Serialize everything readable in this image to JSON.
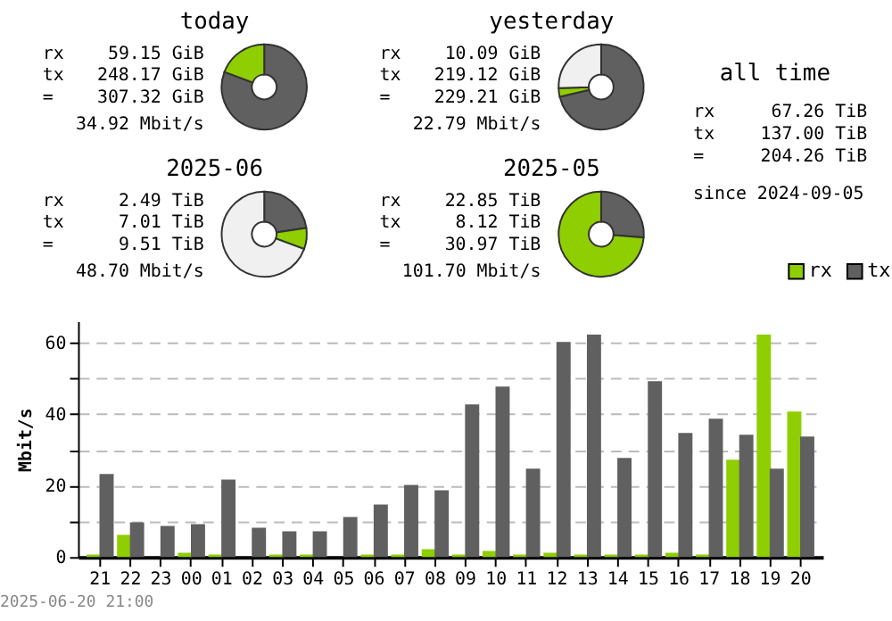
{
  "chart_data": [
    {
      "type": "donut",
      "title": "today",
      "categories": [
        null,
        null
      ],
      "values": [
        80.75,
        19.25
      ],
      "colors": [
        "#606060",
        "#8fce00"
      ],
      "annotations": [
        "rx 59.15 GiB",
        "tx 248.17 GiB",
        "= 307.32 GiB",
        "34.92 Mbit/s"
      ]
    },
    {
      "type": "donut",
      "title": "yesterday",
      "categories": [
        null,
        null,
        null
      ],
      "values": [
        71.3,
        3.28,
        25.42
      ],
      "colors": [
        "#606060",
        "#8fce00",
        "#f0f0f0"
      ],
      "annotations": [
        "rx 10.09 GiB",
        "tx 219.12 GiB",
        "= 229.21 GiB",
        "22.79 Mbit/s"
      ]
    },
    {
      "type": "other",
      "title": "all time",
      "annotations": [
        "rx 67.26 TiB",
        "tx 137.00 TiB",
        "= 204.26 TiB",
        "since 2024-09-05"
      ]
    },
    {
      "type": "donut",
      "title": "2025-06",
      "categories": [
        null,
        null,
        null
      ],
      "values": [
        22.63,
        8.04,
        69.33
      ],
      "colors": [
        "#606060",
        "#8fce00",
        "#f0f0f0"
      ],
      "annotations": [
        "rx 2.49 TiB",
        "tx 7.01 TiB",
        "= 9.51 TiB",
        "48.70 Mbit/s"
      ]
    },
    {
      "type": "donut",
      "title": "2025-05",
      "categories": [
        null,
        null
      ],
      "values": [
        26.22,
        73.78
      ],
      "colors": [
        "#606060",
        "#8fce00"
      ],
      "annotations": [
        "rx 22.85 TiB",
        "tx 8.12 TiB",
        "= 30.97 TiB",
        "101.70 Mbit/s"
      ]
    },
    {
      "type": "bar",
      "ylabel": "Mbit/s",
      "categories": [
        "21",
        "22",
        "23",
        "00",
        "01",
        "02",
        "03",
        "04",
        "05",
        "06",
        "07",
        "08",
        "09",
        "10",
        "11",
        "12",
        "13",
        "14",
        "15",
        "16",
        "17",
        "18",
        "19",
        "20"
      ],
      "series": [
        {
          "name": "rx",
          "color": "#8fce00",
          "values": [
            0.7,
            6.2,
            0,
            1.2,
            0.7,
            0,
            0.7,
            0.7,
            0,
            0.7,
            0.7,
            2.2,
            0.7,
            1.7,
            0.7,
            1.2,
            0.7,
            0.7,
            0.7,
            1.2,
            0.7,
            27.2,
            62.2,
            40.7
          ]
        },
        {
          "name": "tx",
          "color": "#606060",
          "values": [
            23.2,
            9.7,
            8.7,
            9.2,
            21.7,
            8.2,
            7.2,
            7.2,
            11.2,
            14.7,
            20.2,
            18.7,
            42.7,
            47.7,
            24.7,
            60.2,
            62.2,
            27.7,
            49.2,
            34.7,
            38.7,
            34.2,
            24.7,
            33.7
          ]
        }
      ],
      "ylim": [
        0,
        66
      ],
      "yticks": [
        0,
        {
          "value": 10,
          "label": null
        },
        20,
        {
          "value": 30,
          "label": null
        },
        40,
        {
          "value": 50,
          "label": null
        },
        60
      ],
      "grid": "y",
      "legend": "top right",
      "annotations": [
        "2025-06-20 21:00"
      ]
    }
  ]
}
